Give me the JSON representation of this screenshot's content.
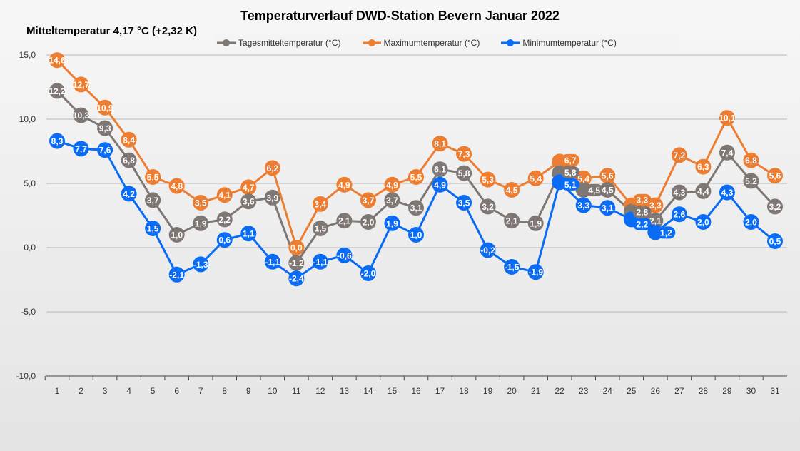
{
  "chart_data": {
    "type": "line",
    "title": "Temperaturverlauf  DWD-Station  Bevern Januar 2022",
    "subtitle": "Mitteltemperatur 4,17 °C (+2,32 K)",
    "xlabel": "",
    "ylabel": "",
    "ylim": [
      -10,
      15
    ],
    "yticks": [
      "-10,0",
      "-5,0",
      "0,0",
      "5,0",
      "10,0",
      "15,0"
    ],
    "categories": [
      "1",
      "2",
      "3",
      "4",
      "5",
      "6",
      "7",
      "8",
      "9",
      "10",
      "11",
      "12",
      "13",
      "14",
      "15",
      "16",
      "17",
      "18",
      "19",
      "20",
      "21",
      "22",
      "23",
      "24",
      "25",
      "26",
      "27",
      "28",
      "29",
      "30",
      "31"
    ],
    "grid": true,
    "legend_position": "top",
    "series": [
      {
        "name": "Tagesmitteltemperatur (°C)",
        "color": "#7f7773",
        "values": [
          12.2,
          10.3,
          9.3,
          6.8,
          3.7,
          1.0,
          1.9,
          2.2,
          3.6,
          3.9,
          -1.2,
          1.5,
          2.1,
          2.0,
          3.7,
          3.1,
          6.1,
          5.8,
          3.2,
          2.1,
          1.9,
          5.8,
          4.5,
          4.5,
          2.8,
          2.1,
          4.3,
          4.4,
          7.4,
          5.2,
          3.2
        ]
      },
      {
        "name": "Maximumtemperatur (°C)",
        "color": "#ed7d31",
        "values": [
          14.6,
          12.7,
          10.9,
          8.4,
          5.5,
          4.8,
          3.5,
          4.1,
          4.7,
          6.2,
          0.0,
          3.4,
          4.9,
          3.7,
          4.9,
          5.5,
          8.1,
          7.3,
          5.3,
          4.5,
          5.4,
          6.7,
          5.4,
          5.6,
          3.3,
          3.3,
          7.2,
          6.3,
          10.1,
          6.8,
          5.6
        ]
      },
      {
        "name": "Minimumtemperatur (°C)",
        "color": "#0a6cf5",
        "values": [
          8.3,
          7.7,
          7.6,
          4.2,
          1.5,
          -2.1,
          -1.3,
          0.6,
          1.1,
          -1.1,
          -2.4,
          -1.1,
          -0.6,
          -2.0,
          1.9,
          1.0,
          4.9,
          3.5,
          -0.2,
          -1.5,
          -1.9,
          5.1,
          3.3,
          3.1,
          2.2,
          1.2,
          2.6,
          2.0,
          4.3,
          2.0,
          0.5
        ]
      }
    ]
  }
}
